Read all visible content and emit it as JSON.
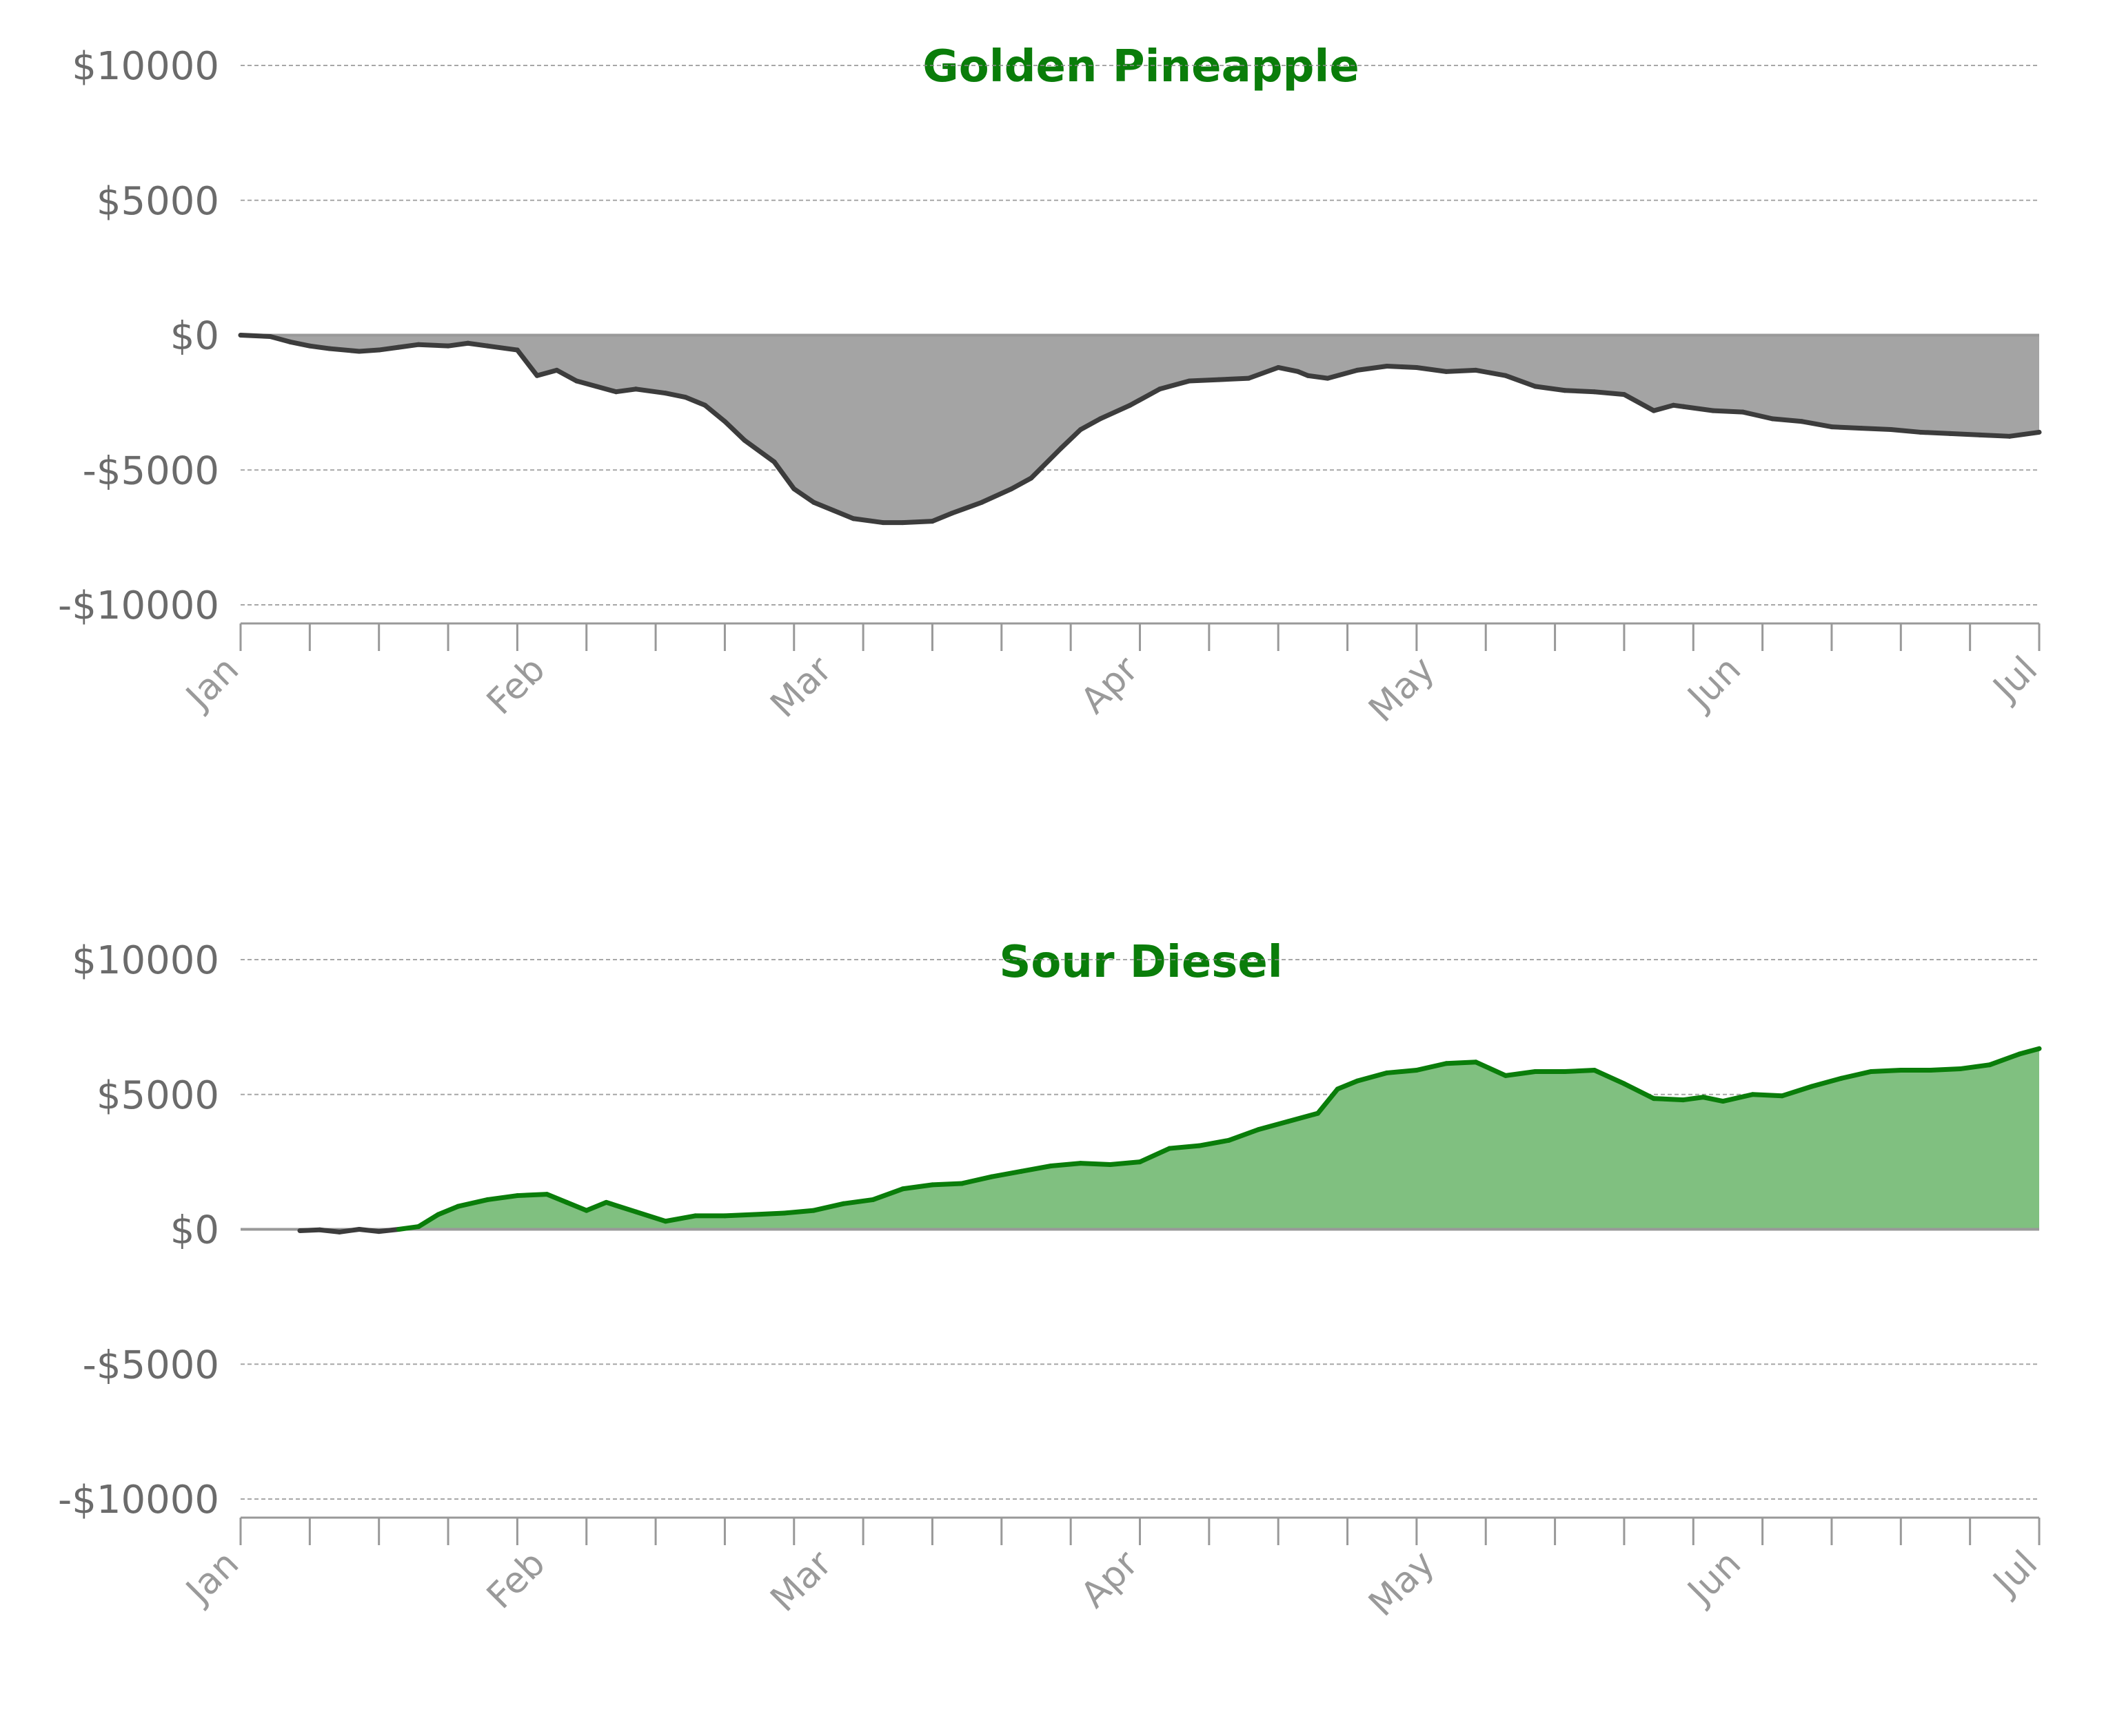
{
  "colors": {
    "title": "#0a7d0a",
    "negative_fill": "#a4a4a4",
    "negative_line": "#3c3c3c",
    "positive_fill": "#80c080",
    "positive_line": "#0a7d0a",
    "grid": "#8a8a8a",
    "axis": "#999999"
  },
  "chart_data": [
    {
      "type": "area",
      "title": "Golden Pineapple",
      "xlabel": "",
      "ylabel": "",
      "ylim": [
        -10000,
        10000
      ],
      "xlim": [
        "2020-01-01",
        "2020-07-01"
      ],
      "y_ticks": [
        10000,
        5000,
        0,
        -5000,
        -10000
      ],
      "y_tick_labels": [
        "$10000",
        "$5000",
        "$0",
        "-$5000",
        "-$10000"
      ],
      "x_tick_labels": [
        "Jan",
        "Feb",
        "Mar",
        "Apr",
        "May",
        "Jun",
        "Jul"
      ],
      "grid": "horizontal dashed",
      "x": [
        "2020-01-01",
        "2020-01-04",
        "2020-01-06",
        "2020-01-08",
        "2020-01-10",
        "2020-01-13",
        "2020-01-15",
        "2020-01-17",
        "2020-01-19",
        "2020-01-22",
        "2020-01-24",
        "2020-01-26",
        "2020-01-29",
        "2020-01-31",
        "2020-02-02",
        "2020-02-04",
        "2020-02-06",
        "2020-02-08",
        "2020-02-10",
        "2020-02-13",
        "2020-02-15",
        "2020-02-17",
        "2020-02-19",
        "2020-02-21",
        "2020-02-24",
        "2020-02-26",
        "2020-02-28",
        "2020-03-01",
        "2020-03-03",
        "2020-03-06",
        "2020-03-08",
        "2020-03-11",
        "2020-03-13",
        "2020-03-16",
        "2020-03-19",
        "2020-03-21",
        "2020-03-24",
        "2020-03-26",
        "2020-03-28",
        "2020-03-31",
        "2020-04-03",
        "2020-04-06",
        "2020-04-09",
        "2020-04-12",
        "2020-04-15",
        "2020-04-17",
        "2020-04-18",
        "2020-04-20",
        "2020-04-23",
        "2020-04-26",
        "2020-04-29",
        "2020-05-02",
        "2020-05-05",
        "2020-05-08",
        "2020-05-11",
        "2020-05-14",
        "2020-05-17",
        "2020-05-20",
        "2020-05-23",
        "2020-05-25",
        "2020-05-26",
        "2020-05-29",
        "2020-06-01",
        "2020-06-04",
        "2020-06-07",
        "2020-06-10",
        "2020-06-13",
        "2020-06-16",
        "2020-06-19",
        "2020-06-22",
        "2020-06-25",
        "2020-06-28",
        "2020-07-01"
      ],
      "y": [
        0,
        -50,
        -250,
        -400,
        -500,
        -600,
        -550,
        -450,
        -350,
        -400,
        -300,
        -400,
        -550,
        -1500,
        -1300,
        -1700,
        -1900,
        -2100,
        -2000,
        -2150,
        -2300,
        -2600,
        -3200,
        -3900,
        -4700,
        -5700,
        -6200,
        -6500,
        -6800,
        -6950,
        -6950,
        -6900,
        -6600,
        -6200,
        -5700,
        -5300,
        -4200,
        -3500,
        -3100,
        -2600,
        -2000,
        -1700,
        -1650,
        -1600,
        -1200,
        -1350,
        -1500,
        -1600,
        -1300,
        -1150,
        -1200,
        -1350,
        -1300,
        -1500,
        -1900,
        -2050,
        -2100,
        -2200,
        -2800,
        -2600,
        -2650,
        -2800,
        -2850,
        -3100,
        -3200,
        -3400,
        -3450,
        -3500,
        -3600,
        -3650,
        -3700,
        -3750,
        -3600
      ]
    },
    {
      "type": "area",
      "title": "Sour Diesel",
      "xlabel": "",
      "ylabel": "",
      "ylim": [
        -10000,
        10000
      ],
      "xlim": [
        "2020-01-01",
        "2020-07-01"
      ],
      "y_ticks": [
        10000,
        5000,
        0,
        -5000,
        -10000
      ],
      "y_tick_labels": [
        "$10000",
        "$5000",
        "$0",
        "-$5000",
        "-$10000"
      ],
      "x_tick_labels": [
        "Jan",
        "Feb",
        "Mar",
        "Apr",
        "May",
        "Jun",
        "Jul"
      ],
      "grid": "horizontal dashed",
      "x": [
        "2020-01-07",
        "2020-01-09",
        "2020-01-11",
        "2020-01-13",
        "2020-01-15",
        "2020-01-17",
        "2020-01-19",
        "2020-01-21",
        "2020-01-23",
        "2020-01-26",
        "2020-01-29",
        "2020-02-01",
        "2020-02-03",
        "2020-02-05",
        "2020-02-07",
        "2020-02-10",
        "2020-02-13",
        "2020-02-16",
        "2020-02-19",
        "2020-02-22",
        "2020-02-25",
        "2020-02-28",
        "2020-03-02",
        "2020-03-05",
        "2020-03-08",
        "2020-03-11",
        "2020-03-14",
        "2020-03-17",
        "2020-03-20",
        "2020-03-23",
        "2020-03-26",
        "2020-03-29",
        "2020-04-01",
        "2020-04-04",
        "2020-04-07",
        "2020-04-10",
        "2020-04-13",
        "2020-04-16",
        "2020-04-19",
        "2020-04-21",
        "2020-04-23",
        "2020-04-26",
        "2020-04-29",
        "2020-05-02",
        "2020-05-05",
        "2020-05-08",
        "2020-05-11",
        "2020-05-14",
        "2020-05-17",
        "2020-05-20",
        "2020-05-23",
        "2020-05-26",
        "2020-05-28",
        "2020-05-30",
        "2020-06-02",
        "2020-06-05",
        "2020-06-08",
        "2020-06-11",
        "2020-06-14",
        "2020-06-17",
        "2020-06-20",
        "2020-06-23",
        "2020-06-26",
        "2020-06-29",
        "2020-07-01"
      ],
      "y": [
        -50,
        -20,
        -100,
        0,
        -80,
        0,
        100,
        550,
        850,
        1100,
        1250,
        1300,
        1000,
        700,
        1000,
        650,
        300,
        500,
        500,
        550,
        600,
        700,
        950,
        1100,
        1500,
        1650,
        1700,
        1950,
        2150,
        2350,
        2450,
        2400,
        2500,
        3000,
        3100,
        3300,
        3700,
        4000,
        4300,
        5200,
        5500,
        5800,
        5900,
        6150,
        6200,
        5700,
        5850,
        5850,
        5900,
        5400,
        4850,
        4800,
        4900,
        4750,
        5000,
        4950,
        5300,
        5600,
        5850,
        5900,
        5900,
        5950,
        6100,
        6500,
        6700
      ]
    }
  ]
}
